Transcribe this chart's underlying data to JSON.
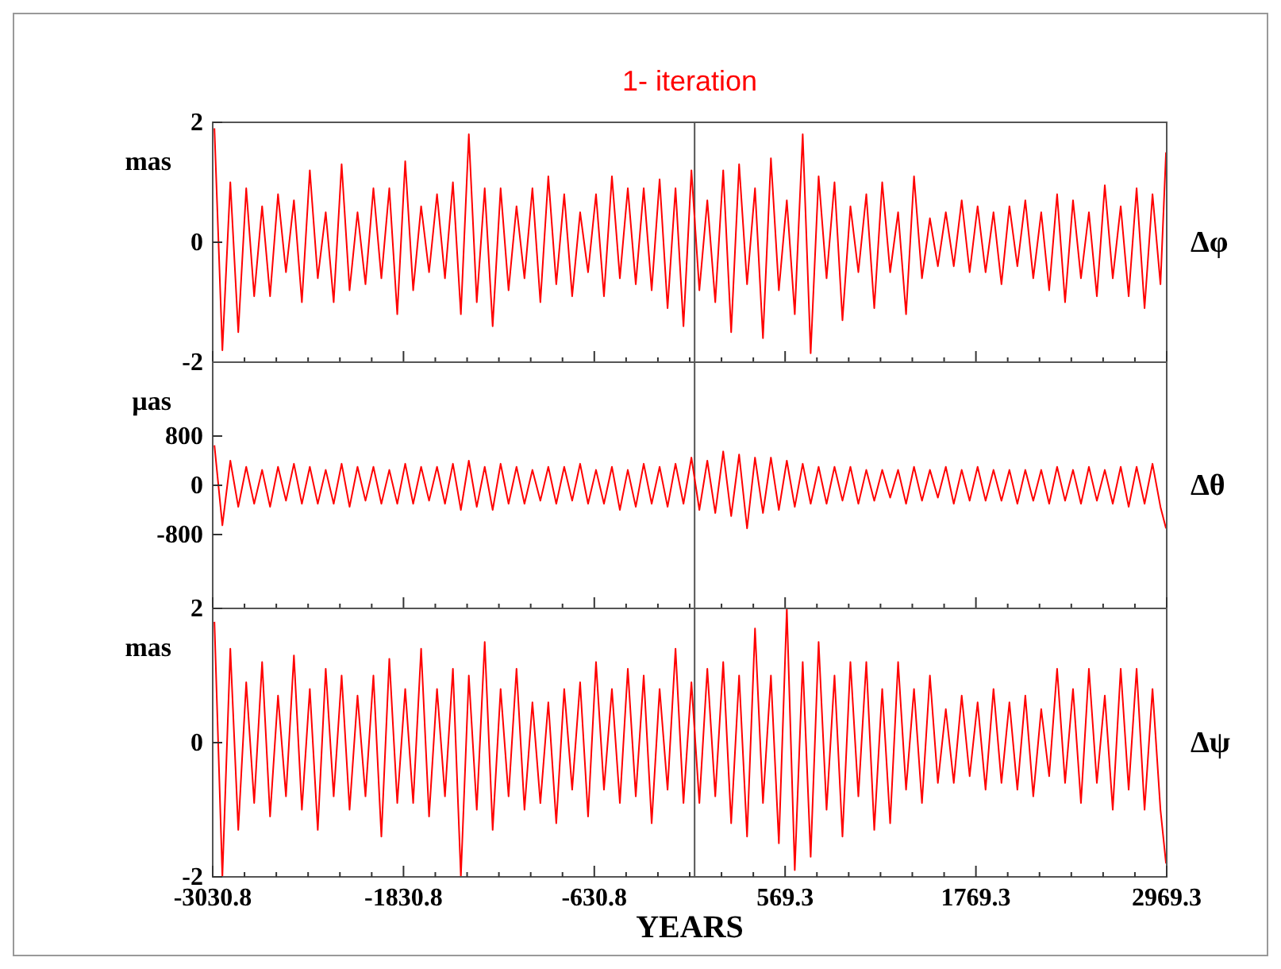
{
  "chart_data": [
    {
      "type": "line",
      "title": "1- iteration",
      "ylabel": "mas",
      "y2label": "Δφ",
      "xlim": [
        -3030.8,
        2969.3
      ],
      "xticks": [
        -3030.8,
        -1830.8,
        -630.8,
        569.3,
        1769.3,
        2969.3
      ],
      "ylim": [
        -2,
        2
      ],
      "yticks": [
        -2,
        0,
        2
      ],
      "tick_labels": "y",
      "grid": false,
      "marker": "none",
      "ref_lines": [
        {
          "axis": "x",
          "value": 0,
          "color": "#555555"
        }
      ],
      "x": [
        -3020,
        -2970,
        -2920,
        -2870,
        -2820,
        -2770,
        -2720,
        -2670,
        -2620,
        -2570,
        -2520,
        -2470,
        -2420,
        -2370,
        -2320,
        -2270,
        -2220,
        -2170,
        -2120,
        -2070,
        -2020,
        -1970,
        -1920,
        -1870,
        -1820,
        -1770,
        -1720,
        -1670,
        -1620,
        -1570,
        -1520,
        -1470,
        -1420,
        -1370,
        -1320,
        -1270,
        -1220,
        -1170,
        -1120,
        -1070,
        -1020,
        -970,
        -920,
        -870,
        -820,
        -770,
        -720,
        -670,
        -620,
        -570,
        -520,
        -470,
        -420,
        -370,
        -320,
        -270,
        -220,
        -170,
        -120,
        -70,
        -20,
        30,
        80,
        130,
        180,
        230,
        280,
        330,
        380,
        430,
        480,
        530,
        580,
        630,
        680,
        730,
        780,
        830,
        880,
        930,
        980,
        1030,
        1080,
        1130,
        1180,
        1230,
        1280,
        1330,
        1380,
        1430,
        1480,
        1530,
        1580,
        1630,
        1680,
        1730,
        1780,
        1830,
        1880,
        1930,
        1980,
        2030,
        2080,
        2130,
        2180,
        2230,
        2280,
        2330,
        2380,
        2430,
        2480,
        2530,
        2580,
        2630,
        2680,
        2730,
        2780,
        2830,
        2880,
        2930,
        2965
      ],
      "series": [
        {
          "color": "#ff0000",
          "values": [
            1.9,
            -1.8,
            1.0,
            -1.5,
            0.9,
            -0.9,
            0.6,
            -0.9,
            0.8,
            -0.5,
            0.7,
            -1.0,
            1.2,
            -0.6,
            0.5,
            -1.0,
            1.3,
            -0.8,
            0.5,
            -0.7,
            0.9,
            -0.6,
            0.9,
            -1.2,
            1.35,
            -0.8,
            0.6,
            -0.5,
            0.8,
            -0.6,
            1.0,
            -1.2,
            1.8,
            -1.0,
            0.9,
            -1.4,
            0.9,
            -0.8,
            0.6,
            -0.6,
            0.9,
            -1.0,
            1.1,
            -0.7,
            0.8,
            -0.9,
            0.5,
            -0.5,
            0.8,
            -0.9,
            1.1,
            -0.6,
            0.9,
            -0.7,
            0.9,
            -0.8,
            1.05,
            -1.1,
            0.9,
            -1.4,
            1.2,
            -0.8,
            0.7,
            -1.0,
            1.2,
            -1.5,
            1.3,
            -0.7,
            0.9,
            -1.6,
            1.4,
            -0.8,
            0.7,
            -1.2,
            1.8,
            -1.85,
            1.1,
            -0.6,
            1.0,
            -1.3,
            0.6,
            -0.5,
            0.8,
            -1.1,
            1.0,
            -0.5,
            0.5,
            -1.2,
            1.1,
            -0.6,
            0.4,
            -0.4,
            0.5,
            -0.4,
            0.7,
            -0.5,
            0.6,
            -0.5,
            0.5,
            -0.7,
            0.6,
            -0.4,
            0.7,
            -0.6,
            0.5,
            -0.8,
            0.8,
            -1.0,
            0.7,
            -0.6,
            0.5,
            -0.9,
            0.95,
            -0.6,
            0.6,
            -0.9,
            0.9,
            -1.1,
            0.8,
            -0.7,
            1.5
          ]
        }
      ]
    },
    {
      "type": "line",
      "ylabel": "µas",
      "y2label": "Δθ",
      "xlim": [
        -3030.8,
        2969.3
      ],
      "xticks": [
        -3030.8,
        -1830.8,
        -630.8,
        569.3,
        1769.3,
        2969.3
      ],
      "ylim": [
        -2000,
        2000
      ],
      "yticks": [
        -800,
        0,
        800
      ],
      "tick_labels": "y",
      "grid": false,
      "marker": "none",
      "ref_lines": [
        {
          "axis": "x",
          "value": 0,
          "color": "#555555"
        }
      ],
      "x": [
        -3020,
        -2970,
        -2920,
        -2870,
        -2820,
        -2770,
        -2720,
        -2670,
        -2620,
        -2570,
        -2520,
        -2470,
        -2420,
        -2370,
        -2320,
        -2270,
        -2220,
        -2170,
        -2120,
        -2070,
        -2020,
        -1970,
        -1920,
        -1870,
        -1820,
        -1770,
        -1720,
        -1670,
        -1620,
        -1570,
        -1520,
        -1470,
        -1420,
        -1370,
        -1320,
        -1270,
        -1220,
        -1170,
        -1120,
        -1070,
        -1020,
        -970,
        -920,
        -870,
        -820,
        -770,
        -720,
        -670,
        -620,
        -570,
        -520,
        -470,
        -420,
        -370,
        -320,
        -270,
        -220,
        -170,
        -120,
        -70,
        -20,
        30,
        80,
        130,
        180,
        230,
        280,
        330,
        380,
        430,
        480,
        530,
        580,
        630,
        680,
        730,
        780,
        830,
        880,
        930,
        980,
        1030,
        1080,
        1130,
        1180,
        1230,
        1280,
        1330,
        1380,
        1430,
        1480,
        1530,
        1580,
        1630,
        1680,
        1730,
        1780,
        1830,
        1880,
        1930,
        1980,
        2030,
        2080,
        2130,
        2180,
        2230,
        2280,
        2330,
        2380,
        2430,
        2480,
        2530,
        2580,
        2630,
        2680,
        2730,
        2780,
        2830,
        2880,
        2930,
        2965
      ],
      "series": [
        {
          "color": "#ff0000",
          "values": [
            650,
            -650,
            400,
            -350,
            300,
            -300,
            250,
            -350,
            300,
            -250,
            350,
            -300,
            300,
            -300,
            250,
            -300,
            350,
            -350,
            300,
            -250,
            300,
            -300,
            250,
            -300,
            350,
            -300,
            300,
            -250,
            300,
            -300,
            350,
            -400,
            400,
            -350,
            300,
            -400,
            350,
            -300,
            300,
            -300,
            250,
            -250,
            300,
            -300,
            300,
            -250,
            350,
            -300,
            250,
            -300,
            300,
            -400,
            250,
            -350,
            350,
            -300,
            300,
            -350,
            350,
            -300,
            450,
            -400,
            400,
            -450,
            550,
            -500,
            500,
            -700,
            450,
            -450,
            450,
            -400,
            400,
            -350,
            350,
            -300,
            300,
            -300,
            300,
            -250,
            300,
            -300,
            250,
            -250,
            250,
            -200,
            250,
            -300,
            300,
            -250,
            250,
            -200,
            300,
            -300,
            250,
            -250,
            300,
            -250,
            250,
            -250,
            250,
            -300,
            250,
            -250,
            250,
            -300,
            300,
            -250,
            250,
            -300,
            300,
            -250,
            250,
            -300,
            300,
            -350,
            300,
            -300,
            350,
            -350,
            -700
          ]
        }
      ]
    },
    {
      "type": "line",
      "ylabel": "mas",
      "y2label": "Δψ",
      "xlabel": "YEARS",
      "xlim": [
        -3030.8,
        2969.3
      ],
      "xticks": [
        -3030.8,
        -1830.8,
        -630.8,
        569.3,
        1769.3,
        2969.3
      ],
      "ylim": [
        -2,
        2
      ],
      "yticks": [
        -2,
        0,
        2
      ],
      "grid": false,
      "marker": "none",
      "ref_lines": [
        {
          "axis": "x",
          "value": 0,
          "color": "#555555"
        }
      ],
      "x": [
        -3020,
        -2970,
        -2920,
        -2870,
        -2820,
        -2770,
        -2720,
        -2670,
        -2620,
        -2570,
        -2520,
        -2470,
        -2420,
        -2370,
        -2320,
        -2270,
        -2220,
        -2170,
        -2120,
        -2070,
        -2020,
        -1970,
        -1920,
        -1870,
        -1820,
        -1770,
        -1720,
        -1670,
        -1620,
        -1570,
        -1520,
        -1470,
        -1420,
        -1370,
        -1320,
        -1270,
        -1220,
        -1170,
        -1120,
        -1070,
        -1020,
        -970,
        -920,
        -870,
        -820,
        -770,
        -720,
        -670,
        -620,
        -570,
        -520,
        -470,
        -420,
        -370,
        -320,
        -270,
        -220,
        -170,
        -120,
        -70,
        -20,
        30,
        80,
        130,
        180,
        230,
        280,
        330,
        380,
        430,
        480,
        530,
        580,
        630,
        680,
        730,
        780,
        830,
        880,
        930,
        980,
        1030,
        1080,
        1130,
        1180,
        1230,
        1280,
        1330,
        1380,
        1430,
        1480,
        1530,
        1580,
        1630,
        1680,
        1730,
        1780,
        1830,
        1880,
        1930,
        1980,
        2030,
        2080,
        2130,
        2180,
        2230,
        2280,
        2330,
        2380,
        2430,
        2480,
        2530,
        2580,
        2630,
        2680,
        2730,
        2780,
        2830,
        2880,
        2930,
        2965
      ],
      "series": [
        {
          "color": "#ff0000",
          "values": [
            1.8,
            -2.0,
            1.4,
            -1.3,
            0.9,
            -0.9,
            1.2,
            -1.1,
            0.7,
            -0.8,
            1.3,
            -1.0,
            0.8,
            -1.3,
            1.1,
            -0.8,
            1.0,
            -1.0,
            0.7,
            -0.8,
            1.0,
            -1.4,
            1.25,
            -0.9,
            0.8,
            -0.9,
            1.4,
            -1.1,
            0.8,
            -0.8,
            1.1,
            -2.0,
            1.0,
            -1.0,
            1.5,
            -1.3,
            0.8,
            -0.8,
            1.1,
            -1.0,
            0.6,
            -0.9,
            0.6,
            -1.2,
            0.8,
            -0.7,
            0.9,
            -1.1,
            1.2,
            -0.7,
            0.8,
            -0.9,
            1.1,
            -0.8,
            1.0,
            -1.2,
            0.8,
            -0.7,
            1.4,
            -0.9,
            0.9,
            -0.9,
            1.1,
            -0.8,
            1.2,
            -1.2,
            1.0,
            -1.4,
            1.7,
            -0.9,
            1.0,
            -1.5,
            2.0,
            -1.9,
            1.2,
            -1.7,
            1.5,
            -1.0,
            1.0,
            -1.4,
            1.2,
            -0.8,
            1.2,
            -1.3,
            0.8,
            -1.2,
            1.2,
            -0.7,
            0.8,
            -0.9,
            1.0,
            -0.6,
            0.5,
            -0.6,
            0.7,
            -0.5,
            0.6,
            -0.7,
            0.8,
            -0.6,
            0.6,
            -0.7,
            0.7,
            -0.8,
            0.5,
            -0.5,
            1.1,
            -0.6,
            0.8,
            -0.9,
            1.1,
            -0.6,
            0.7,
            -1.0,
            1.1,
            -0.7,
            1.1,
            -1.0,
            0.8,
            -1.0,
            -1.8
          ]
        }
      ]
    }
  ]
}
